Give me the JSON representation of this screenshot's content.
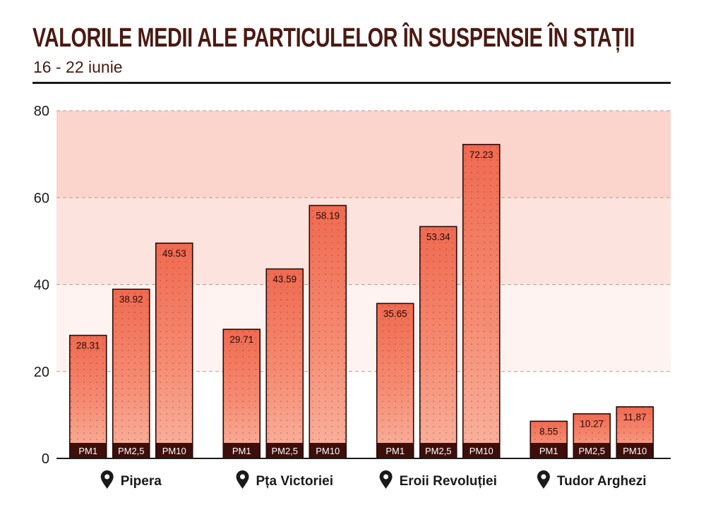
{
  "header": {
    "title": "VALORILE MEDII ALE PARTICULELOR ÎN SUSPENSIE ÎN STAȚII",
    "subtitle": "16 - 22 iunie"
  },
  "colors": {
    "bar_fill_light": "#f9b7a4",
    "bar_fill_dark": "#e9543a",
    "bar_outline": "#2a0a06",
    "label_strip": "#3e0f0a",
    "band_1": "#fff3f1",
    "band_2": "#fde3de",
    "band_3": "#fbd4cb",
    "title": "#4a1a12"
  },
  "chart_data": {
    "type": "bar",
    "title": "VALORILE MEDII ALE PARTICULELOR ÎN SUSPENSIE ÎN STAȚII",
    "subtitle": "16 - 22 iunie",
    "xlabel": "",
    "ylabel": "",
    "ylim": [
      0,
      80
    ],
    "yticks": [
      0,
      20,
      40,
      60,
      80
    ],
    "grid": true,
    "background_bands": [
      [
        20,
        40
      ],
      [
        40,
        60
      ],
      [
        60,
        80
      ]
    ],
    "categories": [
      "Pipera",
      "Pța Victoriei",
      "Eroii Revoluției",
      "Tudor Arghezi"
    ],
    "series": [
      {
        "name": "PM1",
        "values": [
          28.31,
          29.71,
          35.65,
          8.55
        ],
        "labels": [
          "28.31",
          "29.71",
          "35.65",
          "8.55"
        ]
      },
      {
        "name": "PM2,5",
        "values": [
          38.92,
          43.59,
          53.34,
          10.27
        ],
        "labels": [
          "38.92",
          "43.59",
          "53.34",
          "10.27"
        ]
      },
      {
        "name": "PM10",
        "values": [
          49.53,
          58.19,
          72.23,
          11.87
        ],
        "labels": [
          "49.53",
          "58.19",
          "72.23",
          "11,87"
        ]
      }
    ],
    "category_icon": "location-pin-icon"
  }
}
